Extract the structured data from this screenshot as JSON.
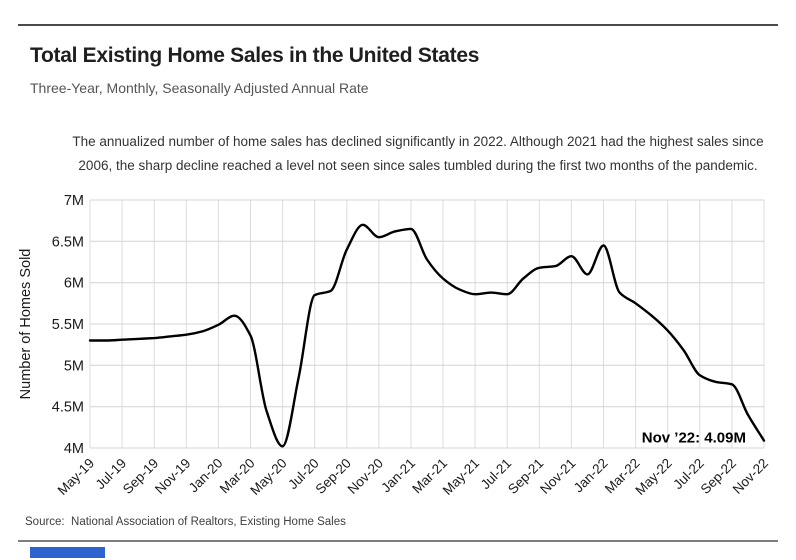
{
  "page": {
    "title": "Total Existing Home Sales in the United States",
    "subtitle": "Three-Year, Monthly, Seasonally Adjusted Annual Rate",
    "annotation_line1": "The annualized number of home sales has declined significantly in 2022. Although 2021 had the highest sales since",
    "annotation_line2": "2006, the sharp decline reached a level not seen since sales tumbled during the first two months of the pandemic.",
    "source": "Source:  National Association of Realtors, Existing Home Sales",
    "accent_color": "#2e63cf"
  },
  "chart_data": {
    "type": "line",
    "title": "Total Existing Home Sales in the United States",
    "subtitle": "Three-Year, Monthly, Seasonally Adjusted Annual Rate",
    "ylabel": "Number of Homes Sold",
    "xlabel": "",
    "ylim": [
      4,
      7
    ],
    "grid": true,
    "legend": "none",
    "line_color": "#000000",
    "grid_color_h": "#d4d4d4",
    "grid_color_v": "#dcdcdc",
    "text_color": "#1a1a1a",
    "end_label": "Nov ’22: 4.09M",
    "yticks": [
      {
        "value": 7,
        "label": "7M"
      },
      {
        "value": 6.5,
        "label": "6.5M"
      },
      {
        "value": 6,
        "label": "6M"
      },
      {
        "value": 5.5,
        "label": "5.5M"
      },
      {
        "value": 5,
        "label": "5M"
      },
      {
        "value": 4.5,
        "label": "4.5M"
      },
      {
        "value": 4,
        "label": "4M"
      }
    ],
    "x_tick_labels": [
      "May-19",
      "Jul-19",
      "Sep-19",
      "Nov-19",
      "Jan-20",
      "Mar-20",
      "May-20",
      "Jul-20",
      "Sep-20",
      "Nov-20",
      "Jan-21",
      "Mar-21",
      "May-21",
      "Jul-21",
      "Sep-21",
      "Nov-21",
      "Jan-22",
      "Mar-22",
      "May-22",
      "Jul-22",
      "Sep-22",
      "Nov-22"
    ],
    "categories": [
      "May-19",
      "Jun-19",
      "Jul-19",
      "Aug-19",
      "Sep-19",
      "Oct-19",
      "Nov-19",
      "Dec-19",
      "Jan-20",
      "Feb-20",
      "Mar-20",
      "Apr-20",
      "May-20",
      "Jun-20",
      "Jul-20",
      "Aug-20",
      "Sep-20",
      "Oct-20",
      "Nov-20",
      "Dec-20",
      "Jan-21",
      "Feb-21",
      "Mar-21",
      "Apr-21",
      "May-21",
      "Jun-21",
      "Jul-21",
      "Aug-21",
      "Sep-21",
      "Oct-21",
      "Nov-21",
      "Dec-21",
      "Jan-22",
      "Feb-22",
      "Mar-22",
      "Apr-22",
      "May-22",
      "Jun-22",
      "Jul-22",
      "Aug-22",
      "Sep-22",
      "Oct-22",
      "Nov-22"
    ],
    "series": [
      {
        "name": "existing-home-sales-saar-millions",
        "values": [
          5.3,
          5.3,
          5.31,
          5.32,
          5.33,
          5.35,
          5.37,
          5.41,
          5.49,
          5.6,
          5.36,
          4.45,
          4.02,
          4.85,
          5.85,
          5.9,
          6.4,
          6.7,
          6.55,
          6.62,
          6.65,
          6.28,
          6.05,
          5.92,
          5.86,
          5.88,
          5.86,
          6.05,
          6.18,
          6.2,
          6.32,
          6.1,
          6.45,
          5.88,
          5.75,
          5.6,
          5.42,
          5.18,
          4.88,
          4.8,
          4.77,
          4.4,
          4.09
        ]
      }
    ]
  }
}
